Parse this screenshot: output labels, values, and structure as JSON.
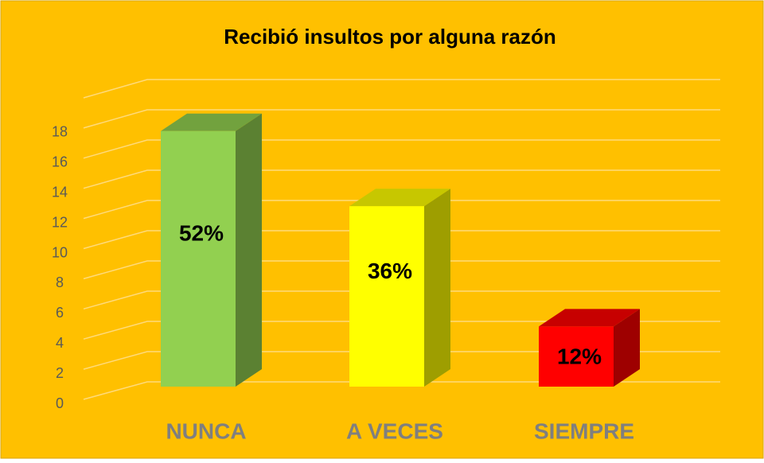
{
  "chart_data": {
    "type": "bar3d",
    "title": "Recibió insultos por alguna razón",
    "categories": [
      "NUNCA",
      "A VECES",
      "SIEMPRE"
    ],
    "values": [
      17,
      12,
      4
    ],
    "percent_labels": [
      "52%",
      "36%",
      "12%"
    ],
    "colors": [
      "#92D050",
      "#FFFF00",
      "#FF0000"
    ],
    "ylim": [
      0,
      20
    ],
    "yticks": [
      0,
      2,
      4,
      6,
      8,
      10,
      12,
      14,
      16,
      18
    ],
    "grid": true
  }
}
